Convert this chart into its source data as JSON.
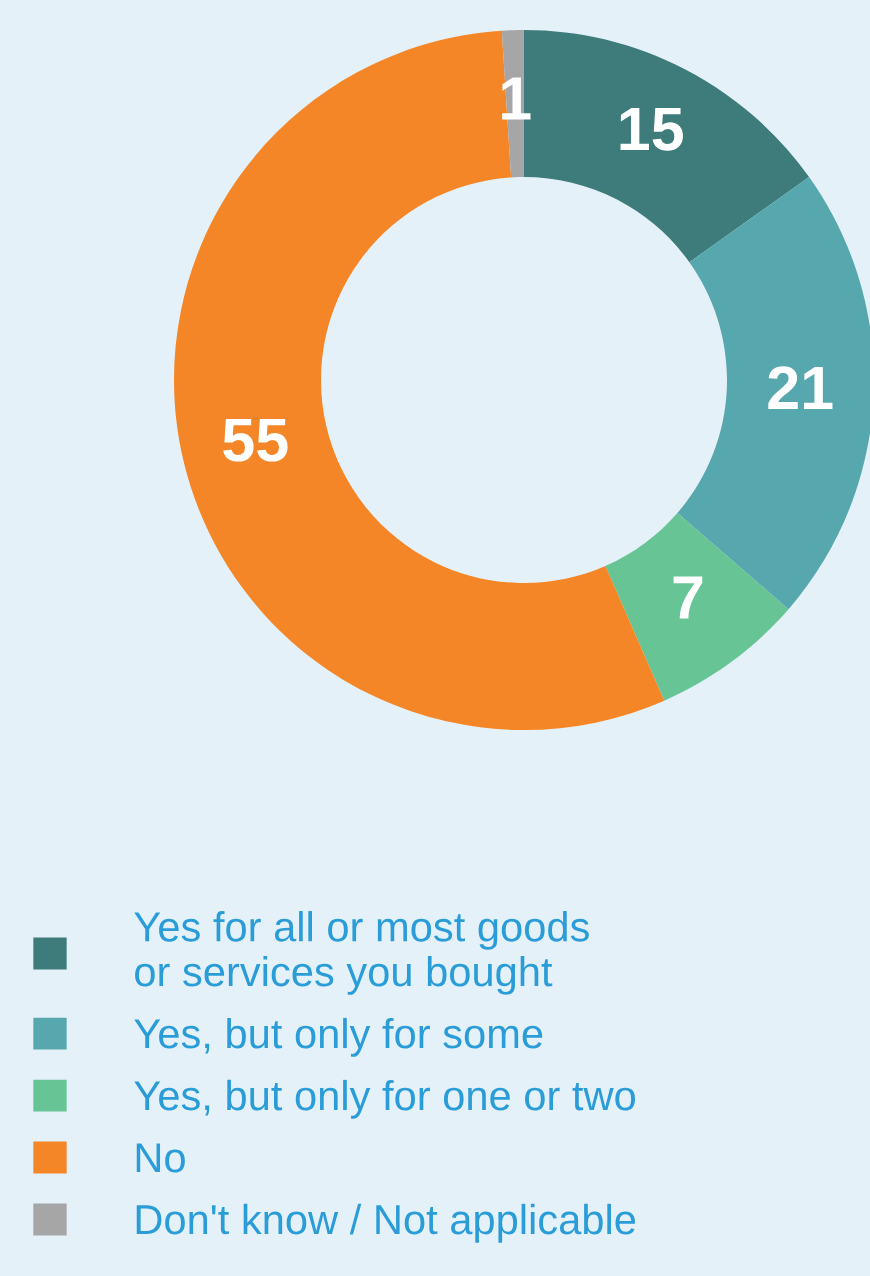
{
  "chart_data": {
    "type": "donut",
    "categories": [
      "Yes for all or most goods\nor services you bought",
      "Yes, but only for some",
      "Yes, but only for one or two",
      "No",
      "Don't know / Not applicable"
    ],
    "values": [
      15,
      21,
      7,
      55,
      1
    ],
    "colors": [
      "#3e7b7b",
      "#57a8ae",
      "#66c495",
      "#f58627",
      "#a6a6a6"
    ],
    "data_labels": true,
    "legend": "bottom"
  }
}
